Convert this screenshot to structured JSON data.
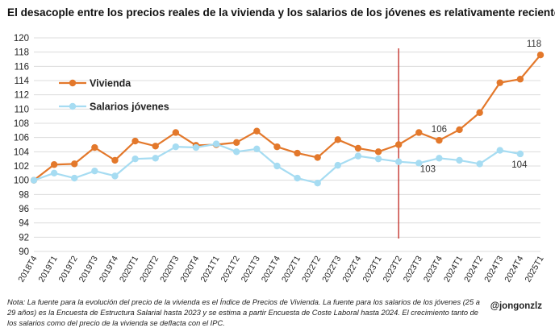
{
  "chart_data": {
    "type": "line",
    "title": "El desacople entre los precios reales de la vivienda y los salarios de los jóvenes es relativamente reciente",
    "xlabel": "",
    "ylabel": "",
    "ylim": [
      90,
      120
    ],
    "yticks": [
      90,
      92,
      94,
      96,
      98,
      100,
      102,
      104,
      106,
      108,
      110,
      112,
      114,
      116,
      118,
      120
    ],
    "grid": "horizontal",
    "legend_position": "upper-left",
    "categories": [
      "2018T4",
      "2019T1",
      "2019T2",
      "2019T3",
      "2019T4",
      "2020T1",
      "2020T2",
      "2020T3",
      "2020T4",
      "2021T1",
      "2021T2",
      "2021T3",
      "2021T4",
      "2022T1",
      "2022T2",
      "2022T3",
      "2022T4",
      "2023T1",
      "2023T2",
      "2023T3",
      "2023T4",
      "2024T1",
      "2024T2",
      "2024T3",
      "2024T4",
      "2025T1"
    ],
    "series": [
      {
        "name": "Vivienda",
        "color": "#e3782b",
        "values": [
          100.0,
          102.2,
          102.3,
          104.6,
          102.8,
          105.5,
          104.8,
          106.7,
          104.9,
          105.0,
          105.3,
          106.9,
          104.7,
          103.8,
          103.2,
          105.7,
          104.5,
          104.0,
          105.0,
          106.7,
          105.6,
          107.1,
          109.5,
          113.7,
          114.2,
          117.6
        ]
      },
      {
        "name": "Salarios jóvenes",
        "color": "#a6dcf2",
        "values": [
          100.0,
          101.0,
          100.3,
          101.3,
          100.6,
          103.0,
          103.1,
          104.7,
          104.6,
          105.1,
          104.0,
          104.4,
          102.0,
          100.3,
          99.6,
          102.1,
          103.4,
          103.0,
          102.6,
          102.4,
          103.1,
          102.8,
          102.3,
          104.2,
          103.7,
          null
        ]
      }
    ],
    "annotations": [
      {
        "text": "118",
        "category": "2025T1",
        "series": "Vivienda"
      },
      {
        "text": "106",
        "category": "2023T4",
        "series": "Vivienda"
      },
      {
        "text": "103",
        "category": "2023T4",
        "series": "Salarios jóvenes"
      },
      {
        "text": "104",
        "category": "2024T4",
        "series": "Salarios jóvenes"
      }
    ],
    "vertical_line": {
      "category": "2023T2",
      "color": "#c0261f"
    }
  },
  "footer": {
    "note": "Nota: La fuente para la evolución del precio de la vivienda es el Índice de Precios de Vivienda. La fuente para los salarios de los jóvenes (25 a 29 años) es la Encuesta de Estructura Salarial hasta 2023 y se estima a partir Encuesta de Coste Laboral hasta 2024. El crecimiento tanto de los salarios como del precio de la vivienda se deflacta con el IPC.",
    "handle": "@jongonzlz"
  }
}
